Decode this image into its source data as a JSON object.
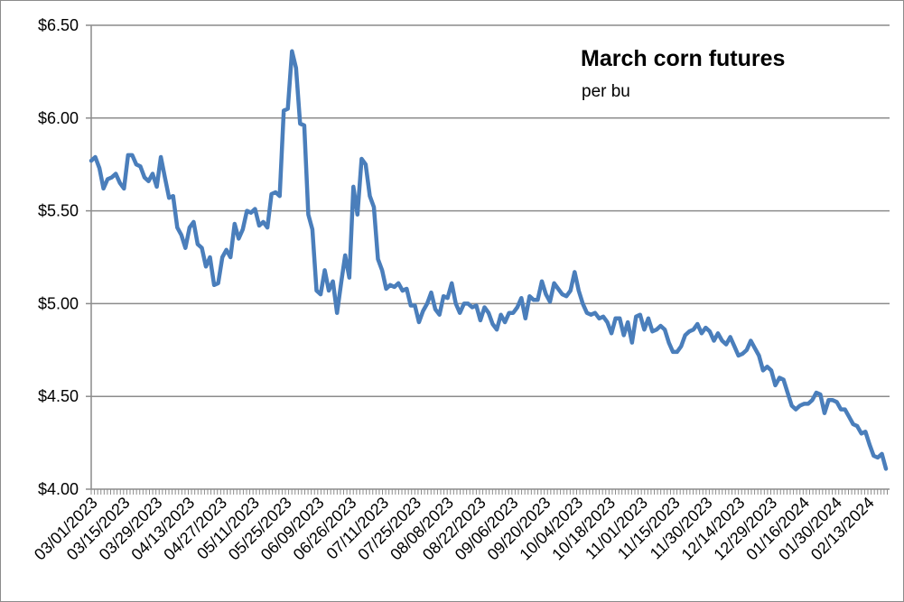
{
  "chart_data": {
    "type": "line",
    "title": "March corn futures",
    "subtitle": "per bu",
    "xlabel": "",
    "ylabel": "",
    "ylim": [
      4.0,
      6.5
    ],
    "yticks": [
      4.0,
      4.5,
      5.0,
      5.5,
      6.0,
      6.5
    ],
    "ytick_labels": [
      "$4.00",
      "$4.50",
      "$5.00",
      "$5.50",
      "$6.00",
      "$6.50"
    ],
    "x_tick_labels": [
      "03/01/2023",
      "03/15/2023",
      "03/29/2023",
      "04/13/2023",
      "04/27/2023",
      "05/11/2023",
      "05/25/2023",
      "06/09/2023",
      "06/26/2023",
      "07/11/2023",
      "07/25/2023",
      "08/08/2023",
      "08/22/2023",
      "09/06/2023",
      "09/20/2023",
      "10/04/2023",
      "10/18/2023",
      "11/01/2023",
      "11/15/2023",
      "11/30/2023",
      "12/14/2023",
      "12/29/2023",
      "01/16/2024",
      "01/30/2024",
      "02/13/2024"
    ],
    "grid": "horizontal",
    "legend": "none",
    "line_color": "#4a7ebb",
    "series": [
      {
        "values": [
          5.77,
          5.79,
          5.73,
          5.62,
          5.67,
          5.68,
          5.7,
          5.65,
          5.62,
          5.8,
          5.8,
          5.75,
          5.74,
          5.68,
          5.66,
          5.7,
          5.63,
          5.79,
          5.68,
          5.57,
          5.58,
          5.41,
          5.37,
          5.3,
          5.41,
          5.44,
          5.32,
          5.3,
          5.2,
          5.25,
          5.1,
          5.11,
          5.25,
          5.29,
          5.25,
          5.43,
          5.35,
          5.4,
          5.5,
          5.49,
          5.51,
          5.42,
          5.44,
          5.41,
          5.59,
          5.6,
          5.58,
          6.04,
          6.05,
          6.36,
          6.27,
          5.97,
          5.96,
          5.48,
          5.4,
          5.07,
          5.05,
          5.18,
          5.07,
          5.12,
          4.95,
          5.11,
          5.26,
          5.14,
          5.63,
          5.48,
          5.78,
          5.75,
          5.58,
          5.52,
          5.24,
          5.18,
          5.08,
          5.1,
          5.09,
          5.11,
          5.07,
          5.08,
          4.99,
          4.99,
          4.9,
          4.96,
          5.0,
          5.06,
          4.97,
          4.94,
          5.04,
          5.03,
          5.11,
          5.0,
          4.95,
          5.0,
          5.0,
          4.98,
          4.99,
          4.91,
          4.98,
          4.95,
          4.89,
          4.86,
          4.94,
          4.9,
          4.95,
          4.95,
          4.98,
          5.03,
          4.92,
          5.04,
          5.02,
          5.02,
          5.12,
          5.05,
          5.01,
          5.11,
          5.08,
          5.05,
          5.04,
          5.07,
          5.17,
          5.07,
          5.0,
          4.95,
          4.94,
          4.95,
          4.92,
          4.93,
          4.9,
          4.84,
          4.92,
          4.92,
          4.83,
          4.9,
          4.79,
          4.93,
          4.94,
          4.86,
          4.92,
          4.85,
          4.86,
          4.88,
          4.86,
          4.79,
          4.74,
          4.74,
          4.77,
          4.83,
          4.85,
          4.86,
          4.89,
          4.84,
          4.87,
          4.85,
          4.8,
          4.84,
          4.8,
          4.78,
          4.82,
          4.77,
          4.72,
          4.73,
          4.75,
          4.8,
          4.76,
          4.72,
          4.64,
          4.66,
          4.64,
          4.56,
          4.6,
          4.59,
          4.52,
          4.45,
          4.43,
          4.45,
          4.46,
          4.46,
          4.48,
          4.52,
          4.51,
          4.41,
          4.48,
          4.48,
          4.47,
          4.43,
          4.43,
          4.39,
          4.35,
          4.34,
          4.3,
          4.31,
          4.24,
          4.18,
          4.17,
          4.19,
          4.11
        ]
      }
    ]
  }
}
